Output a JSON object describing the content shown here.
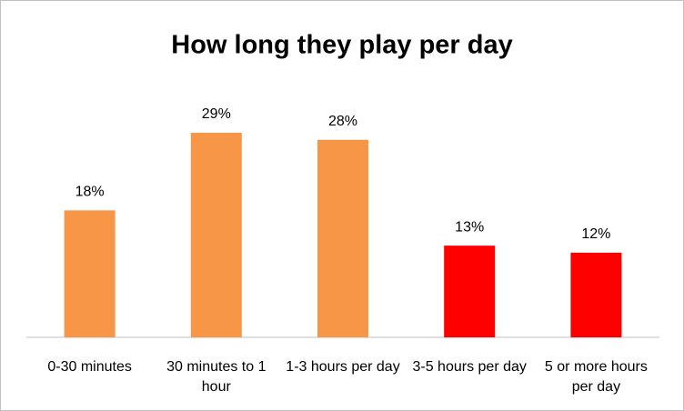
{
  "chart_data": {
    "type": "bar",
    "title": "How long they play per day",
    "categories": [
      "0-30 minutes",
      "30 minutes to 1 hour",
      "1-3 hours per day",
      "3-5 hours per day",
      "5 or more hours per day"
    ],
    "values": [
      18,
      29,
      28,
      13,
      12
    ],
    "value_labels": [
      "18%",
      "29%",
      "28%",
      "13%",
      "12%"
    ],
    "colors": [
      "#f79646",
      "#f79646",
      "#f79646",
      "#ff0000",
      "#ff0000"
    ]
  }
}
